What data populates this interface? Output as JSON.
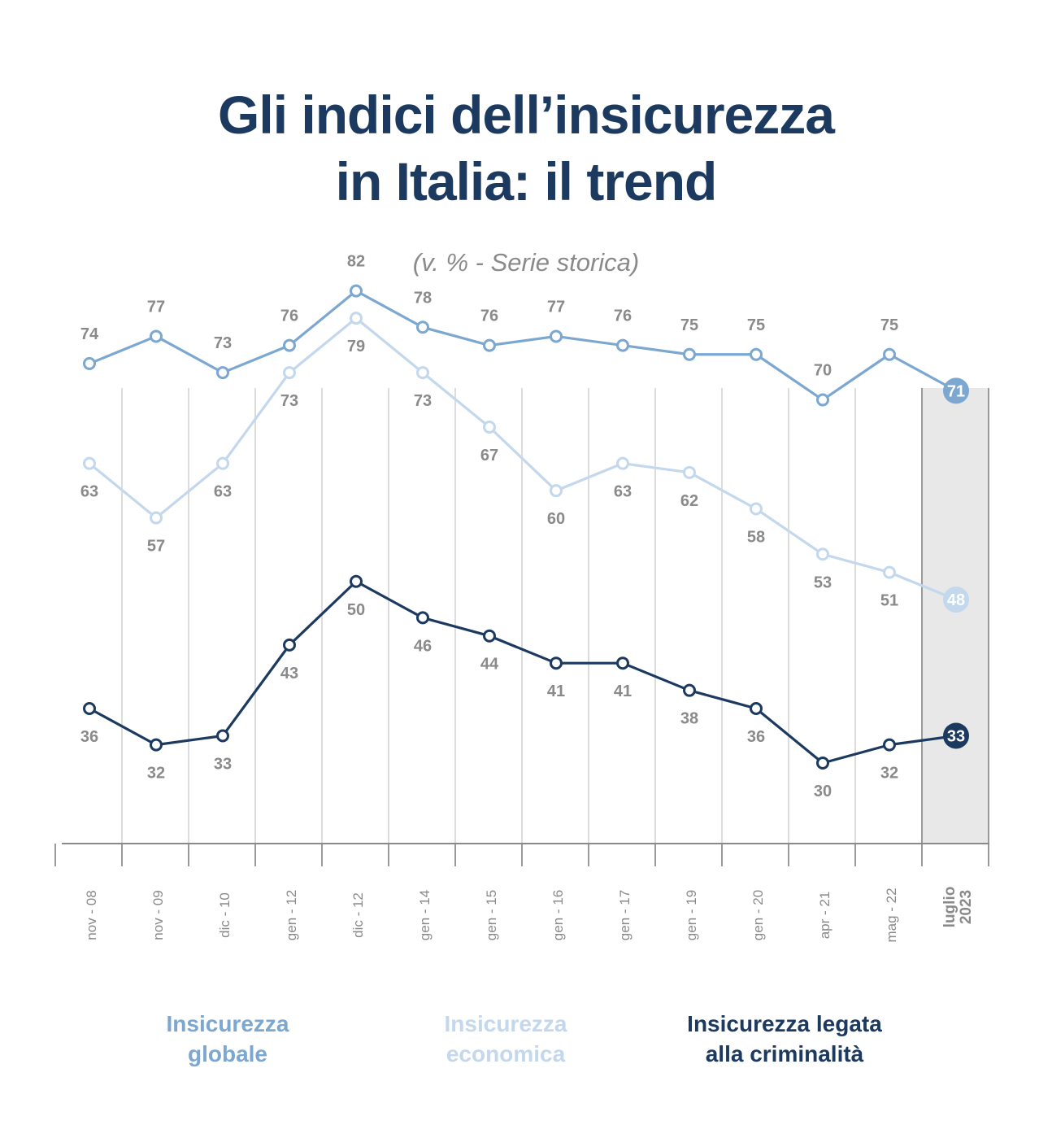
{
  "header": {
    "title_line1": "Gli indici dell’insicurezza",
    "title_line2": "in Italia: il trend",
    "subtitle": "(v. % - Serie storica)"
  },
  "chart_data": {
    "type": "line",
    "categories": [
      "nov - 08",
      "nov - 09",
      "dic - 10",
      "gen - 12",
      "dic - 12",
      "gen - 14",
      "gen - 15",
      "gen - 16",
      "gen - 17",
      "gen - 19",
      "gen - 20",
      "apr - 21",
      "mag - 22",
      "luglio 2023"
    ],
    "highlight_category": {
      "line1": "luglio",
      "line2": "2023"
    },
    "series": [
      {
        "name": "Insicurezza globale",
        "legend_lines": [
          "Insicurezza",
          "globale"
        ],
        "color": "#7ba7d1",
        "values": [
          74,
          77,
          73,
          76,
          82,
          78,
          76,
          77,
          76,
          75,
          75,
          70,
          75,
          71
        ],
        "labels_position": "above"
      },
      {
        "name": "Insicurezza economica",
        "legend_lines": [
          "Insicurezza",
          "economica"
        ],
        "color": "#c3d8ec",
        "values": [
          63,
          57,
          63,
          73,
          79,
          73,
          67,
          60,
          63,
          62,
          58,
          53,
          51,
          48
        ],
        "labels_position": "below"
      },
      {
        "name": "Insicurezza legata alla criminalità",
        "legend_lines": [
          "Insicurezza legata",
          "alla criminalità"
        ],
        "color": "#1c3a60",
        "values": [
          36,
          32,
          33,
          43,
          50,
          46,
          44,
          41,
          41,
          38,
          36,
          30,
          32,
          33
        ],
        "labels_position": "below"
      }
    ],
    "ylim": [
      10,
      90
    ],
    "grid": "vertical",
    "legend_position": "bottom",
    "label_color": "#8a8a8a",
    "highlight_band_color": "#e8e8e8"
  }
}
